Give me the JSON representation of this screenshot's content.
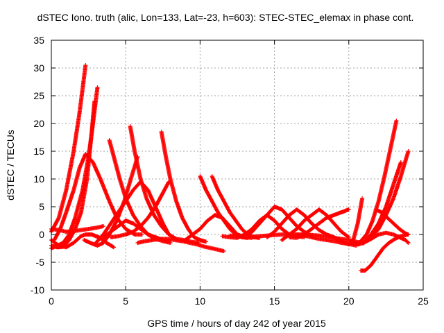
{
  "chart_data": {
    "type": "scatter",
    "title": "dSTEC Iono. truth (alic, Lon=133, Lat=-23, h=603): STEC-STEC_elemax in phase cont.",
    "xlabel": "GPS time / hours of day 242 of year 2015",
    "ylabel": "dSTEC  / TECUs",
    "xlim": [
      0,
      25
    ],
    "ylim": [
      -10,
      35
    ],
    "xticks": [
      "0",
      "5",
      "10",
      "15",
      "20",
      "25"
    ],
    "yticks": [
      "-10",
      "-5",
      "0",
      "5",
      "10",
      "15",
      "20",
      "25",
      "30",
      "35"
    ],
    "grid": true,
    "marker": "plus",
    "color": "#ff0000",
    "series": [
      {
        "x": [
          0.0,
          0.5,
          1.0,
          1.5,
          1.9,
          2.3
        ],
        "y": [
          0.5,
          3.0,
          8.0,
          15.0,
          22.0,
          30.5
        ]
      },
      {
        "x": [
          0.0,
          0.4,
          0.8,
          1.2,
          1.6,
          2.0,
          2.4,
          2.7,
          2.9
        ],
        "y": [
          -2.0,
          -2.3,
          -2.2,
          -1.0,
          1.0,
          4.0,
          10.0,
          18.0,
          24.0
        ]
      },
      {
        "x": [
          0.0,
          0.4,
          0.8,
          1.2,
          1.6,
          2.1,
          2.5,
          2.8,
          3.1
        ],
        "y": [
          -2.5,
          -2.0,
          -1.5,
          0.0,
          3.0,
          8.0,
          14.0,
          20.0,
          26.5
        ]
      },
      {
        "x": [
          0.2,
          0.6,
          1.0,
          1.5,
          1.9,
          2.3,
          2.8,
          3.3,
          3.9,
          4.4,
          5.0,
          5.6,
          6.1
        ],
        "y": [
          -1.0,
          1.0,
          4.0,
          8.0,
          12.0,
          14.5,
          13.0,
          10.0,
          6.0,
          3.0,
          1.0,
          0.0,
          0.0
        ]
      },
      {
        "x": [
          0.0,
          0.5,
          1.0,
          1.5,
          2.0,
          2.3,
          2.7,
          3.2,
          3.7,
          4.2
        ],
        "y": [
          -1.0,
          -2.0,
          -2.3,
          -1.5,
          -0.3,
          0.0,
          0.0,
          -0.5,
          -1.5,
          -2.3
        ]
      },
      {
        "x": [
          0.0,
          0.5,
          1.0,
          1.5,
          2.0,
          2.5,
          3.0,
          3.5
        ],
        "y": [
          1.0,
          0.8,
          0.5,
          0.6,
          0.8,
          1.0,
          1.2,
          1.5
        ]
      },
      {
        "x": [
          2.2,
          2.7,
          3.1,
          3.5,
          3.9,
          4.4,
          4.9,
          5.4,
          5.8
        ],
        "y": [
          -1.0,
          -1.6,
          -2.0,
          -1.5,
          0.0,
          2.5,
          6.0,
          10.5,
          14.0
        ]
      },
      {
        "x": [
          3.9,
          4.2,
          4.6,
          5.0,
          5.5,
          6.0,
          6.5,
          7.0,
          7.5,
          8.0
        ],
        "y": [
          17.0,
          14.0,
          10.0,
          6.5,
          3.5,
          1.5,
          0.0,
          -0.8,
          -1.2,
          -1.5
        ]
      },
      {
        "x": [
          5.3,
          5.6,
          6.0,
          6.4,
          6.9,
          7.4,
          7.9,
          8.4,
          8.9,
          9.4,
          9.9
        ],
        "y": [
          19.5,
          15.0,
          10.0,
          6.5,
          3.5,
          1.5,
          0.0,
          -0.8,
          -1.0,
          -1.3,
          -1.5
        ]
      },
      {
        "x": [
          3.0,
          3.5,
          4.0,
          4.5,
          5.0,
          5.5,
          6.0,
          6.5,
          7.0,
          7.5,
          7.9
        ],
        "y": [
          -1.5,
          0.0,
          2.0,
          4.0,
          6.0,
          8.0,
          9.5,
          8.0,
          5.0,
          2.0,
          0.0
        ]
      },
      {
        "x": [
          3.5,
          4.0,
          4.5,
          5.0,
          5.5,
          6.0,
          6.5,
          7.0,
          7.5,
          8.0
        ],
        "y": [
          -0.5,
          0.5,
          1.5,
          2.5,
          2.0,
          1.0,
          0.0,
          -0.5,
          -1.0,
          -1.2
        ]
      },
      {
        "x": [
          7.4,
          7.7,
          8.0,
          8.4,
          8.8,
          9.2,
          9.6,
          10.0,
          10.4
        ],
        "y": [
          18.5,
          14.0,
          10.0,
          6.0,
          3.0,
          1.0,
          -0.5,
          -1.0,
          -1.3
        ]
      },
      {
        "x": [
          4.0,
          4.5,
          5.0,
          5.5,
          6.0,
          6.5,
          7.0,
          7.5,
          7.9
        ],
        "y": [
          -0.5,
          -0.3,
          0.0,
          0.5,
          1.5,
          3.0,
          5.0,
          7.5,
          9.5
        ]
      },
      {
        "x": [
          5.8,
          6.3,
          6.8,
          7.3,
          7.8,
          8.3,
          8.8,
          9.3,
          9.8,
          10.3,
          10.8,
          11.3,
          11.6
        ],
        "y": [
          -1.5,
          -1.2,
          -1.0,
          -0.8,
          -0.8,
          -1.0,
          -1.2,
          -1.5,
          -1.8,
          -2.2,
          -2.5,
          -2.8,
          -3.0
        ]
      },
      {
        "x": [
          10.0,
          10.4,
          10.8,
          11.2,
          11.6,
          12.0,
          12.4,
          12.8,
          13.2
        ],
        "y": [
          10.5,
          8.0,
          6.0,
          4.0,
          2.5,
          1.0,
          0.0,
          -0.5,
          -0.6
        ]
      },
      {
        "x": [
          10.8,
          11.2,
          11.6,
          12.0,
          12.4,
          12.8,
          13.2,
          13.6,
          14.0
        ],
        "y": [
          10.5,
          8.0,
          6.0,
          4.0,
          2.5,
          1.0,
          0.0,
          -0.5,
          -0.6
        ]
      },
      {
        "x": [
          9.0,
          9.5,
          10.0,
          10.5,
          11.0,
          11.5,
          12.0,
          12.5,
          13.0,
          13.5
        ],
        "y": [
          -1.0,
          0.0,
          1.0,
          2.5,
          3.5,
          3.0,
          1.5,
          0.0,
          -0.5,
          -0.6
        ]
      },
      {
        "x": [
          11.5,
          12.0,
          12.5,
          13.0,
          13.5,
          14.0,
          14.5,
          15.0,
          15.5,
          16.0,
          16.5,
          17.0
        ],
        "y": [
          -0.3,
          -0.5,
          -0.6,
          0.0,
          1.0,
          2.5,
          3.5,
          2.5,
          1.0,
          0.0,
          -0.3,
          -0.5
        ]
      },
      {
        "x": [
          13.0,
          13.5,
          14.0,
          14.5,
          15.0,
          15.5,
          16.0,
          16.5,
          17.0,
          17.5
        ],
        "y": [
          -0.5,
          0.5,
          2.0,
          3.5,
          5.0,
          4.5,
          3.0,
          1.5,
          0.5,
          -0.3
        ]
      },
      {
        "x": [
          14.5,
          15.0,
          15.5,
          16.0,
          16.5,
          17.0,
          17.5,
          18.0,
          18.5,
          19.0
        ],
        "y": [
          -0.5,
          0.5,
          2.0,
          3.5,
          4.5,
          3.5,
          2.0,
          0.8,
          0.0,
          -0.5
        ]
      },
      {
        "x": [
          12.0,
          12.5,
          13.0,
          13.5,
          14.0,
          14.5,
          15.0,
          15.5,
          16.0,
          16.5,
          17.0,
          17.5,
          18.0,
          18.5,
          19.0,
          19.5,
          20.0,
          20.5,
          21.0
        ],
        "y": [
          -0.2,
          -0.3,
          -0.5,
          -0.4,
          -0.3,
          -0.2,
          -0.1,
          0.0,
          0.0,
          0.0,
          0.0,
          -0.1,
          -0.2,
          -0.4,
          -0.6,
          -0.8,
          -1.0,
          -1.3,
          -1.6
        ]
      },
      {
        "x": [
          15.5,
          16.0,
          16.5,
          17.0,
          17.5,
          18.0,
          18.5,
          19.0,
          19.5,
          20.0
        ],
        "y": [
          -1.0,
          0.0,
          1.0,
          2.5,
          3.5,
          4.5,
          3.5,
          2.0,
          0.5,
          -0.5
        ]
      },
      {
        "x": [
          16.0,
          16.5,
          17.0,
          17.5,
          18.0,
          18.5,
          19.0,
          19.5,
          20.0
        ],
        "y": [
          -0.5,
          -0.6,
          0.0,
          1.0,
          2.0,
          3.0,
          3.5,
          4.0,
          4.5
        ]
      },
      {
        "x": [
          16.5,
          17.0,
          17.5,
          18.0,
          18.5,
          19.0,
          19.5,
          20.0,
          20.5
        ],
        "y": [
          0.0,
          -0.2,
          -0.5,
          -0.8,
          -1.0,
          -1.2,
          -1.5,
          -1.7,
          -2.0
        ]
      },
      {
        "x": [
          19.0,
          19.5,
          20.0,
          20.3,
          20.6,
          20.9
        ],
        "y": [
          -0.5,
          -1.2,
          -1.8,
          -1.0,
          2.0,
          6.5
        ]
      },
      {
        "x": [
          20.2,
          20.6,
          21.0,
          21.5,
          22.0,
          22.5,
          23.0,
          23.4,
          23.8,
          24.0
        ],
        "y": [
          -1.5,
          -1.8,
          -1.5,
          -0.8,
          0.0,
          0.3,
          0.0,
          -0.5,
          -1.0,
          -1.5
        ]
      },
      {
        "x": [
          20.8,
          21.2,
          21.6,
          22.0,
          22.4,
          22.8,
          23.2
        ],
        "y": [
          -1.2,
          0.0,
          2.5,
          6.0,
          10.5,
          15.5,
          20.5
        ]
      },
      {
        "x": [
          21.0,
          21.5,
          22.0,
          22.5,
          23.0,
          23.5
        ],
        "y": [
          -1.5,
          0.0,
          2.0,
          5.0,
          9.0,
          13.0
        ]
      },
      {
        "x": [
          21.5,
          22.0,
          22.5,
          23.0,
          23.5,
          24.0
        ],
        "y": [
          -0.5,
          1.0,
          3.5,
          6.5,
          10.5,
          15.0
        ]
      },
      {
        "x": [
          20.8,
          21.1,
          21.5,
          21.9,
          22.3,
          22.7,
          23.1,
          23.5,
          24.0
        ],
        "y": [
          -6.5,
          -6.5,
          -5.5,
          -4.0,
          -2.5,
          -1.5,
          -0.8,
          -0.3,
          0.0
        ]
      },
      {
        "x": [
          21.8,
          22.2,
          22.6,
          23.0,
          23.4,
          23.8,
          24.0
        ],
        "y": [
          4.5,
          4.0,
          3.0,
          2.0,
          1.0,
          0.2,
          0.0
        ]
      }
    ]
  }
}
